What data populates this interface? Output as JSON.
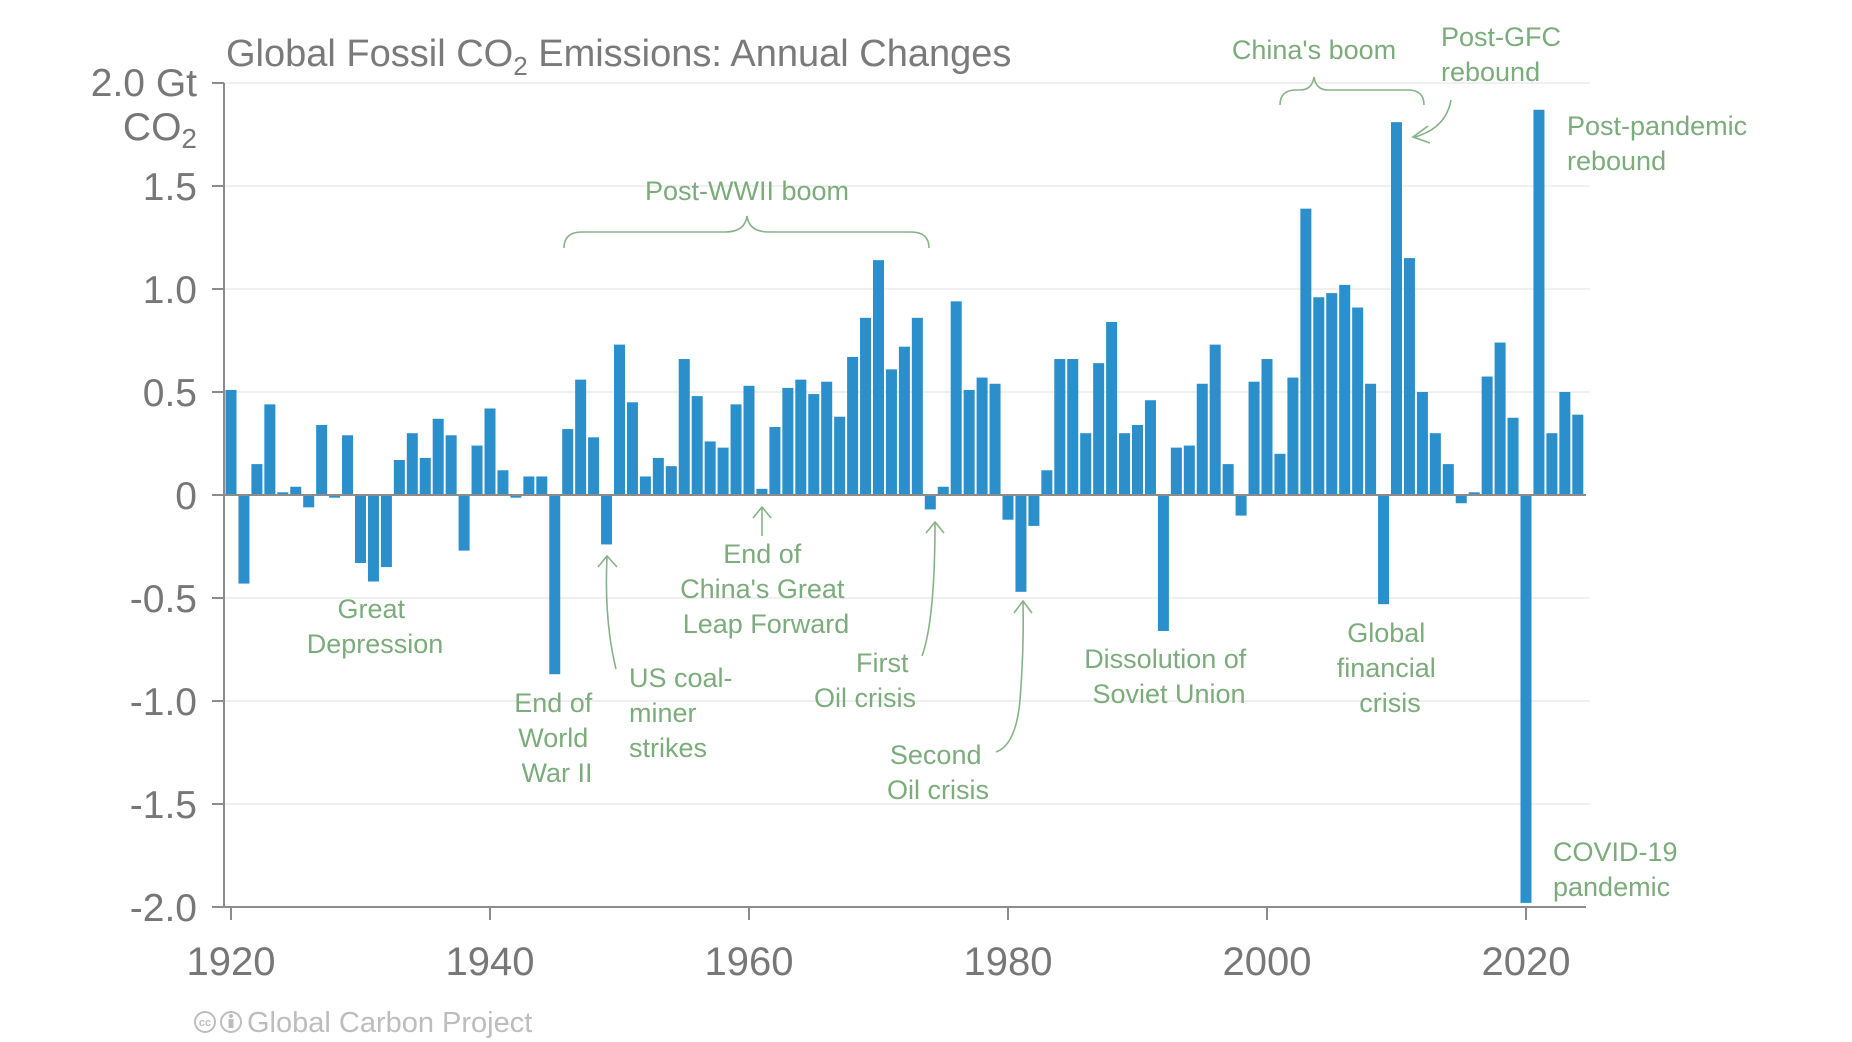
{
  "chart_data": {
    "type": "bar",
    "title": "Global Fossil CO2 Emissions: Annual Changes",
    "title_parts": {
      "pre": "Global Fossil CO",
      "sub": "2",
      "post": " Emissions: Annual Changes"
    },
    "ylabel": "Gt CO2",
    "ylabel_parts": {
      "top": "2.0 Gt",
      "second_pre": "CO",
      "second_sub": "2"
    },
    "xlabel": "",
    "ylim": [
      -2.0,
      2.0
    ],
    "xlim": [
      1920,
      2024
    ],
    "grid": true,
    "yticks": [
      {
        "value": 1.5,
        "label": "1.5"
      },
      {
        "value": 1.0,
        "label": "1.0"
      },
      {
        "value": 0.5,
        "label": "0.5"
      },
      {
        "value": 0,
        "label": "0"
      },
      {
        "value": -0.5,
        "label": "-0.5"
      },
      {
        "value": -1.0,
        "label": "-1.0"
      },
      {
        "value": -1.5,
        "label": "-1.5"
      },
      {
        "value": -2.0,
        "label": "-2.0"
      }
    ],
    "xticks": [
      {
        "value": 1920,
        "label": "1920"
      },
      {
        "value": 1940,
        "label": "1940"
      },
      {
        "value": 1960,
        "label": "1960"
      },
      {
        "value": 1980,
        "label": "1980"
      },
      {
        "value": 2000,
        "label": "2000"
      },
      {
        "value": 2020,
        "label": "2020"
      }
    ],
    "series": [
      {
        "name": "Annual change in global fossil CO2 emissions (Gt CO2)",
        "color": "#2a8fca",
        "x": [
          1920,
          1921,
          1922,
          1923,
          1924,
          1925,
          1926,
          1927,
          1928,
          1929,
          1930,
          1931,
          1932,
          1933,
          1934,
          1935,
          1936,
          1937,
          1938,
          1939,
          1940,
          1941,
          1942,
          1943,
          1944,
          1945,
          1946,
          1947,
          1948,
          1949,
          1950,
          1951,
          1952,
          1953,
          1954,
          1955,
          1956,
          1957,
          1958,
          1959,
          1960,
          1961,
          1962,
          1963,
          1964,
          1965,
          1966,
          1967,
          1968,
          1969,
          1970,
          1971,
          1972,
          1973,
          1974,
          1975,
          1976,
          1977,
          1978,
          1979,
          1980,
          1981,
          1982,
          1983,
          1984,
          1985,
          1986,
          1987,
          1988,
          1989,
          1990,
          1991,
          1992,
          1993,
          1994,
          1995,
          1996,
          1997,
          1998,
          1999,
          2000,
          2001,
          2002,
          2003,
          2004,
          2005,
          2006,
          2007,
          2008,
          2009,
          2010,
          2011,
          2012,
          2013,
          2014,
          2015,
          2016,
          2017,
          2018,
          2019,
          2020,
          2021,
          2022,
          2023,
          2024
        ],
        "values": [
          0.51,
          -0.43,
          0.15,
          0.44,
          0.013,
          0.04,
          -0.06,
          0.34,
          -0.013,
          0.29,
          -0.33,
          -0.42,
          -0.35,
          0.17,
          0.3,
          0.18,
          0.37,
          0.29,
          -0.27,
          0.24,
          0.42,
          0.12,
          -0.013,
          0.09,
          0.09,
          -0.87,
          0.32,
          0.56,
          0.28,
          -0.24,
          0.73,
          0.45,
          0.09,
          0.18,
          0.14,
          0.66,
          0.48,
          0.26,
          0.23,
          0.44,
          0.53,
          0.03,
          0.33,
          0.52,
          0.56,
          0.49,
          0.55,
          0.38,
          0.67,
          0.86,
          1.14,
          0.61,
          0.72,
          0.86,
          -0.07,
          0.04,
          0.94,
          0.51,
          0.57,
          0.54,
          -0.12,
          -0.47,
          -0.15,
          0.12,
          0.66,
          0.66,
          0.3,
          0.64,
          0.84,
          0.3,
          0.34,
          0.46,
          -0.66,
          0.23,
          0.24,
          0.54,
          0.73,
          0.15,
          -0.1,
          0.55,
          0.66,
          0.2,
          0.57,
          1.39,
          0.96,
          0.98,
          1.02,
          0.91,
          0.54,
          -0.53,
          1.81,
          1.15,
          0.5,
          0.3,
          0.15,
          -0.04,
          0.013,
          0.575,
          0.74,
          0.375,
          -1.98,
          1.87,
          0.3,
          0.5,
          0.39
        ]
      }
    ],
    "annotations": [
      {
        "id": "post-wwii-boom",
        "lines": [
          "Post-WWII boom"
        ],
        "kind": "brace",
        "span": [
          1945,
          1973
        ]
      },
      {
        "id": "chinas-boom",
        "lines": [
          "China's boom"
        ],
        "kind": "brace",
        "span": [
          2001,
          2011
        ]
      },
      {
        "id": "post-gfc-rebound",
        "lines": [
          "Post-GFC",
          "rebound"
        ],
        "kind": "arrow",
        "year": 2010
      },
      {
        "id": "post-pandemic-rebound",
        "lines": [
          "Post-pandemic",
          "rebound"
        ],
        "kind": "label",
        "year": 2021
      },
      {
        "id": "great-depression",
        "lines": [
          "Great",
          "Depression"
        ],
        "kind": "label",
        "year": 1931
      },
      {
        "id": "end-of-wwii",
        "lines": [
          "End of",
          "World",
          "War II"
        ],
        "kind": "label",
        "year": 1945
      },
      {
        "id": "us-coal-miner-strikes",
        "lines": [
          "US coal-",
          "miner",
          "strikes"
        ],
        "kind": "arrow",
        "year": 1949
      },
      {
        "id": "end-of-great-leap-forward",
        "lines": [
          "End of",
          "China's Great",
          "Leap Forward"
        ],
        "kind": "arrow",
        "year": 1961
      },
      {
        "id": "first-oil-crisis",
        "lines": [
          "First",
          "Oil crisis"
        ],
        "kind": "arrow",
        "year": 1974
      },
      {
        "id": "second-oil-crisis",
        "lines": [
          "Second",
          "Oil crisis"
        ],
        "kind": "arrow",
        "year": 1981
      },
      {
        "id": "dissolution-soviet-union",
        "lines": [
          "Dissolution of",
          "Soviet Union"
        ],
        "kind": "label",
        "year": 1992
      },
      {
        "id": "global-financial-crisis",
        "lines": [
          "Global",
          "financial",
          "crisis"
        ],
        "kind": "label",
        "year": 2009
      },
      {
        "id": "covid-19-pandemic",
        "lines": [
          "COVID-19",
          "pandemic"
        ],
        "kind": "label",
        "year": 2020
      }
    ]
  },
  "footer": {
    "credit": "Global Carbon Project",
    "license_icons": [
      "cc-icon",
      "attribution-icon"
    ],
    "cc_text": "cc"
  },
  "colors": {
    "bar": "#2a8fca",
    "annotation": "#7cac7c",
    "text": "#777777",
    "footer": "#bdbdbd"
  }
}
